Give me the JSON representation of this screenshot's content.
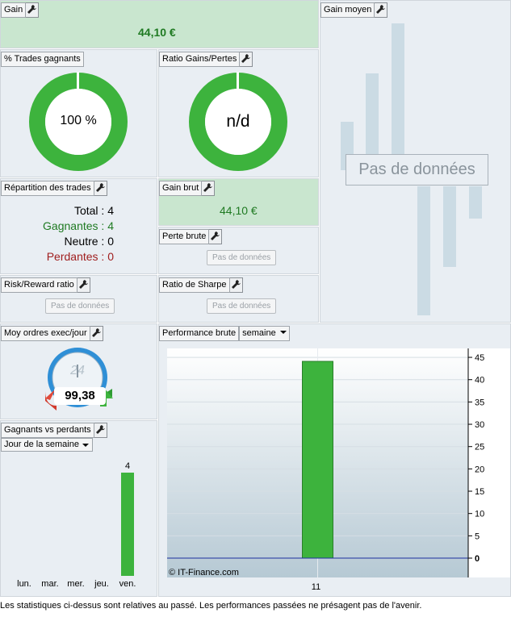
{
  "gain": {
    "tab_label": "Gain",
    "value": "44,10 €"
  },
  "gain_moyen": {
    "tab_label": "Gain moyen",
    "no_data": "Pas de données"
  },
  "trades_gagnants": {
    "tab_label": "% Trades gagnants",
    "value": "100 %",
    "fraction": 1.0
  },
  "ratio_gains_pertes": {
    "tab_label": "Ratio Gains/Pertes",
    "value": "n/d",
    "fraction": 1.0
  },
  "repartition": {
    "tab_label": "Répartition des trades",
    "total": "Total : 4",
    "gagnantes": "Gagnantes : 4",
    "neutre": "Neutre : 0",
    "perdantes": "Perdantes : 0"
  },
  "gain_brut": {
    "tab_label": "Gain brut",
    "value": "44,10 €"
  },
  "perte_brute": {
    "tab_label": "Perte brute",
    "no_data": "Pas de données"
  },
  "risk_reward": {
    "tab_label": "Risk/Reward ratio",
    "no_data": "Pas de données"
  },
  "sharpe": {
    "tab_label": "Ratio de Sharpe",
    "no_data": "Pas de données"
  },
  "moy_ordres": {
    "tab_label": "Moy ordres exec/jour",
    "value": "99,38",
    "clock_label": "24"
  },
  "gagnants_vs_perdants": {
    "tab_label": "Gagnants vs perdants",
    "dropdown": "Jour de la semaine",
    "chart_data": {
      "type": "bar",
      "categories": [
        "lun.",
        "mar.",
        "mer.",
        "jeu.",
        "ven."
      ],
      "values": [
        0,
        0,
        0,
        0,
        4
      ],
      "ylim": [
        0,
        4
      ]
    }
  },
  "performance_brute": {
    "tab_label": "Performance brute",
    "dropdown": "semaine",
    "watermark": "© IT-Finance.com",
    "chart_data": {
      "type": "bar",
      "categories": [
        "11"
      ],
      "values": [
        44.1
      ],
      "ylim": [
        0,
        47
      ],
      "yticks": [
        0,
        5,
        10,
        15,
        20,
        25,
        30,
        35,
        40,
        45
      ],
      "grid": true
    }
  },
  "footer": {
    "text": "Les statistiques ci-dessus sont relatives au passé. Les performances passées ne présagent pas de l'avenir."
  },
  "colors": {
    "green": "#3db33d",
    "dark_green": "#1f7a22",
    "red": "#a01e1e",
    "panel": "#e9eef3",
    "panel_green": "#c9e6cf"
  }
}
